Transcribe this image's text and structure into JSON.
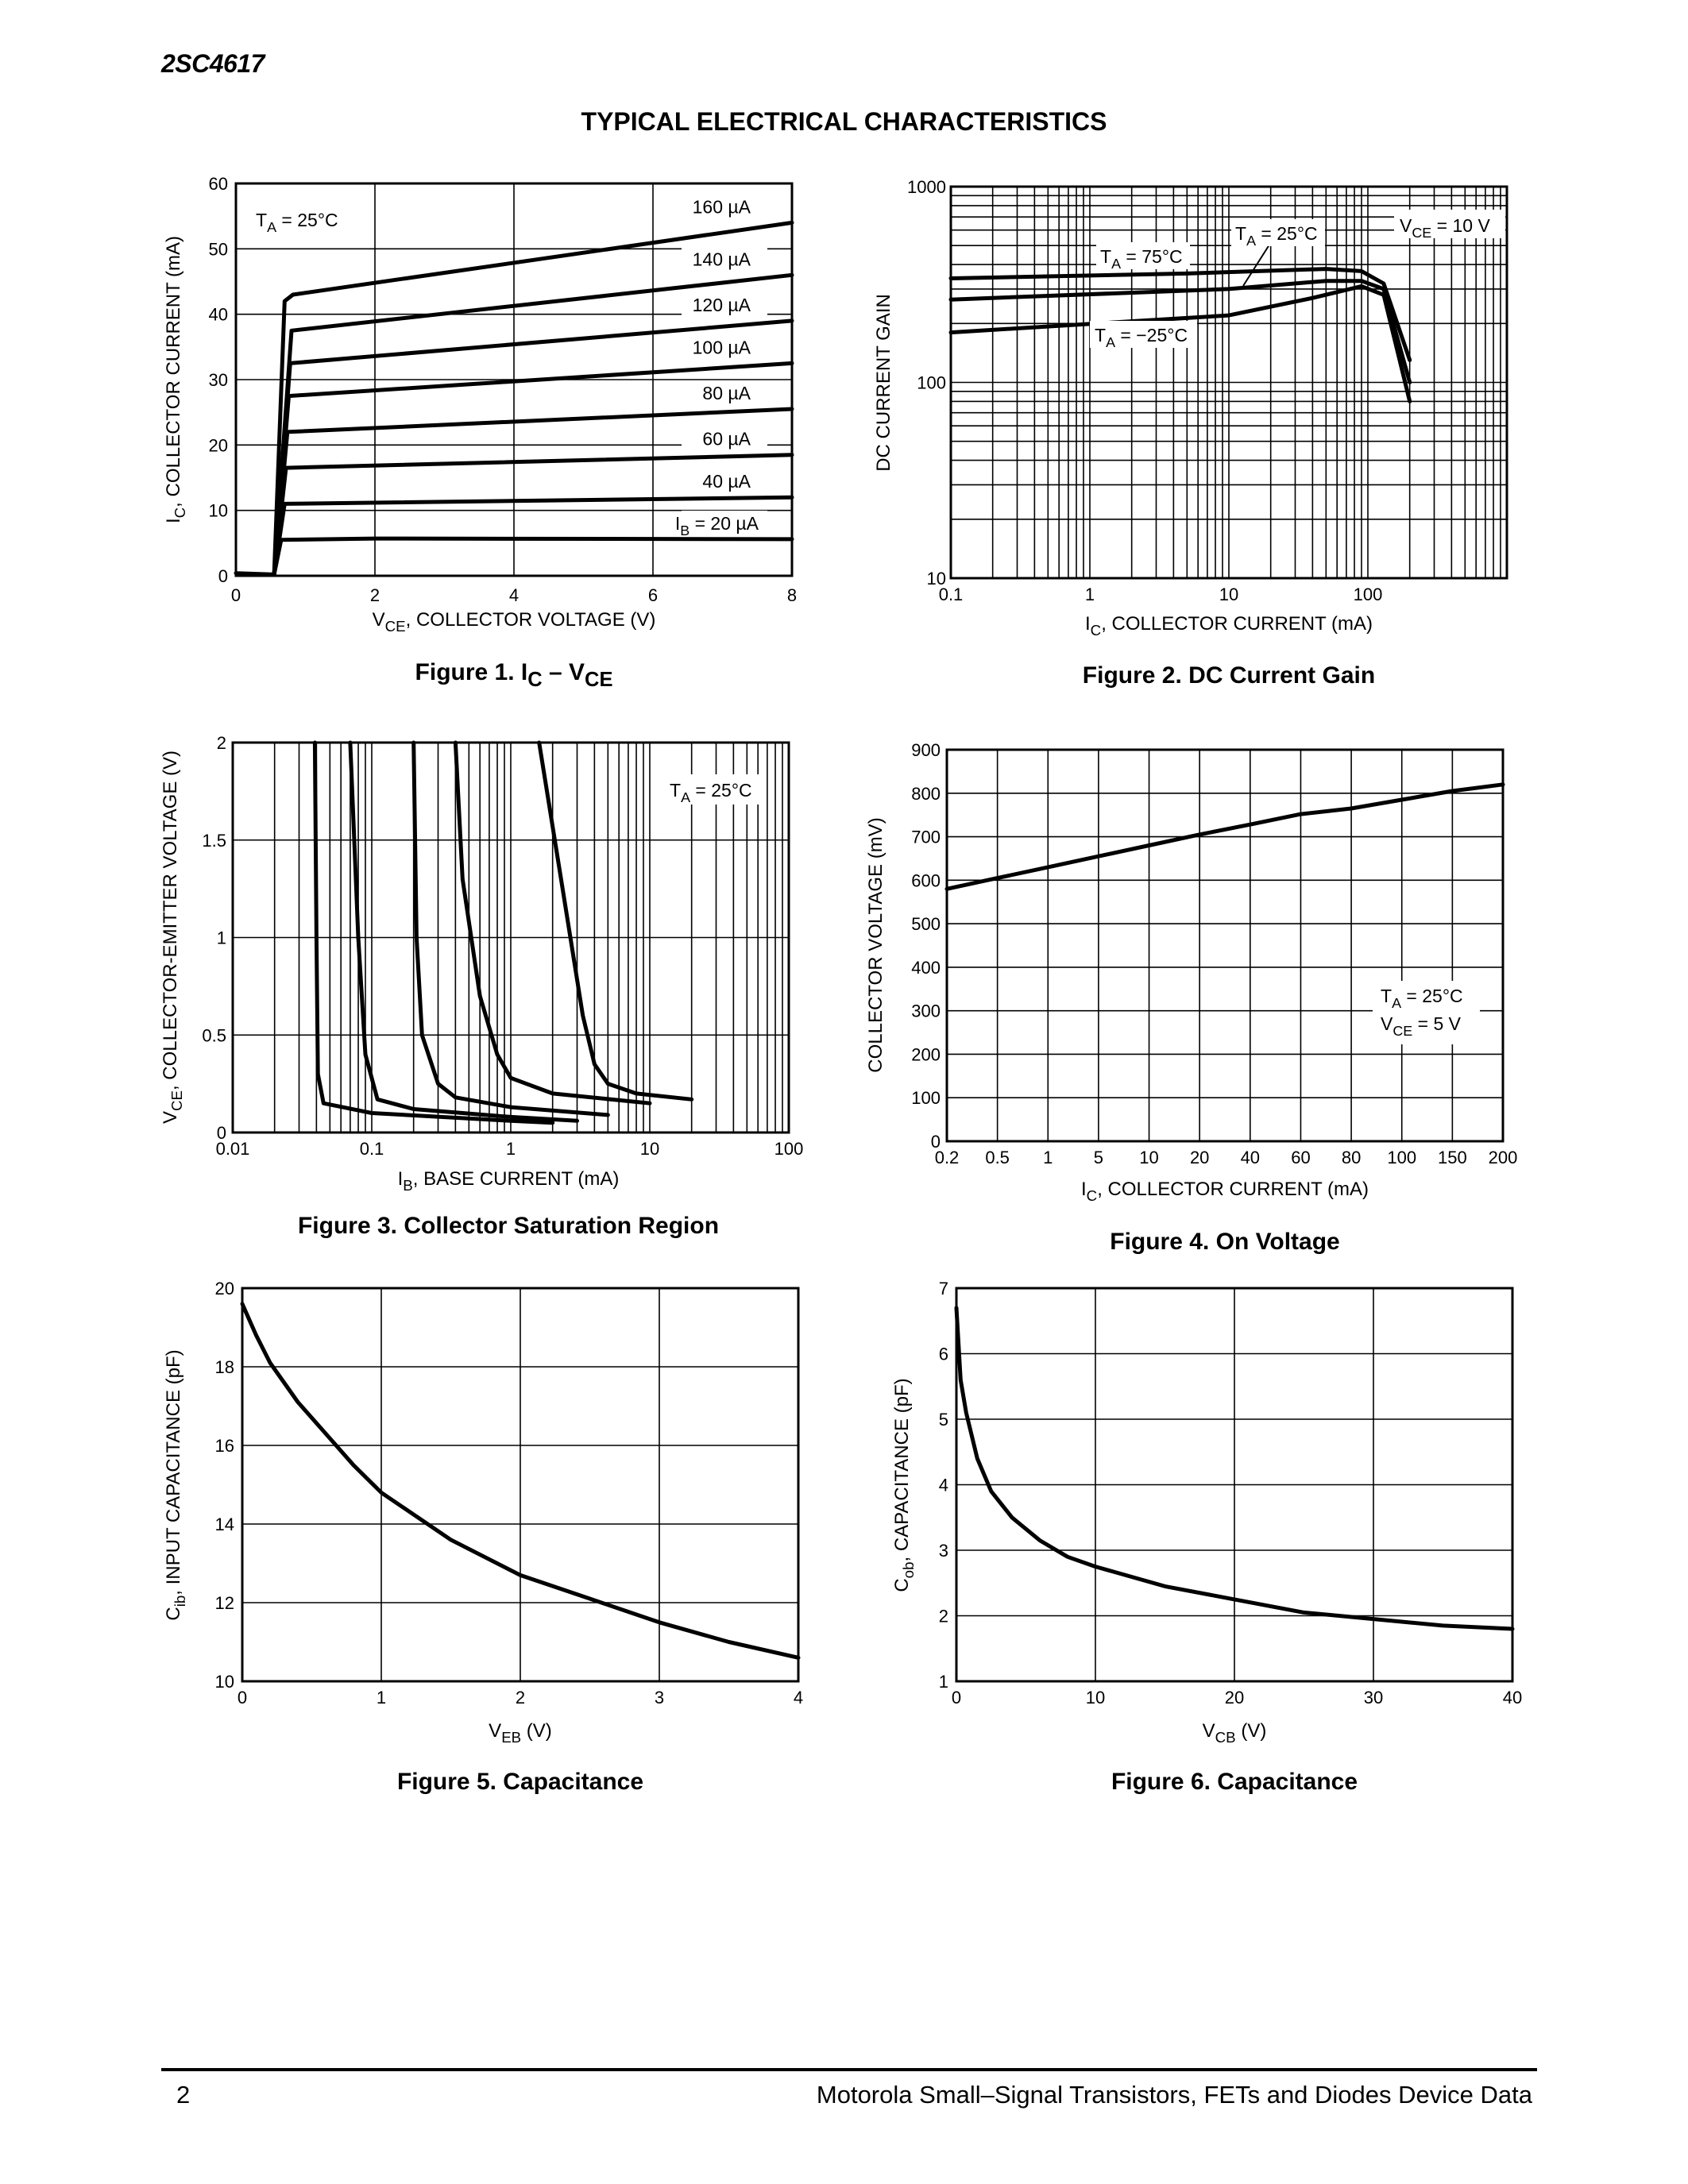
{
  "header": {
    "part_number": "2SC4617",
    "section_title": "TYPICAL ELECTRICAL CHARACTERISTICS"
  },
  "footer": {
    "page_number": "2",
    "text": "Motorola Small–Signal Transistors, FETs and Diodes Device Data"
  },
  "chart_data": [
    {
      "id": "fig1",
      "type": "line",
      "caption": {
        "prefix": "Figure 1. I",
        "sub1": "C",
        "mid": " – V",
        "sub2": "CE"
      },
      "xlabel": {
        "main": "V",
        "sub": "CE",
        "rest": ", COLLECTOR VOLTAGE (V)"
      },
      "ylabel": {
        "main": "I",
        "sub": "C",
        "rest": ", COLLECTOR CURRENT (mA)"
      },
      "xlim": [
        0,
        8
      ],
      "ylim": [
        0,
        60
      ],
      "xticks": [
        "0",
        "2",
        "4",
        "6",
        "8"
      ],
      "yticks": [
        "0",
        "10",
        "20",
        "30",
        "40",
        "50",
        "60"
      ],
      "annotation": {
        "main": "T",
        "sub": "A",
        "rest": " = 25°C"
      },
      "series": [
        {
          "name": "I_B = 20 µA",
          "label": "= 20 µA",
          "label_prefix": "I",
          "label_sub": "B",
          "points": [
            [
              0,
              0.4
            ],
            [
              0.55,
              0.2
            ],
            [
              0.65,
              5.5
            ],
            [
              2,
              5.7
            ],
            [
              8,
              5.6
            ]
          ]
        },
        {
          "name": "40 µA",
          "label": "40 µA",
          "points": [
            [
              0.55,
              0.2
            ],
            [
              0.7,
              11
            ],
            [
              8,
              12
            ]
          ]
        },
        {
          "name": "60 µA",
          "label": "60 µA",
          "points": [
            [
              0.55,
              0.2
            ],
            [
              0.72,
              16.5
            ],
            [
              8,
              18.5
            ]
          ]
        },
        {
          "name": "80 µA",
          "label": "80 µA",
          "points": [
            [
              0.55,
              0.2
            ],
            [
              0.74,
              22
            ],
            [
              8,
              25.5
            ]
          ]
        },
        {
          "name": "100 µA",
          "label": "100 µA",
          "points": [
            [
              0.55,
              0.2
            ],
            [
              0.76,
              27.5
            ],
            [
              8,
              32.5
            ]
          ]
        },
        {
          "name": "120 µA",
          "label": "120 µA",
          "points": [
            [
              0.55,
              0.2
            ],
            [
              0.78,
              32.5
            ],
            [
              8,
              39
            ]
          ]
        },
        {
          "name": "140 µA",
          "label": "140 µA",
          "points": [
            [
              0.55,
              0.2
            ],
            [
              0.8,
              37.5
            ],
            [
              8,
              46
            ]
          ]
        },
        {
          "name": "160 µA",
          "label": "160 µA",
          "points": [
            [
              0.55,
              0.2
            ],
            [
              0.7,
              42
            ],
            [
              0.82,
              43
            ],
            [
              8,
              54
            ]
          ]
        }
      ]
    },
    {
      "id": "fig2",
      "type": "line",
      "scale": "log-log",
      "caption": "Figure 2. DC Current Gain",
      "xlabel": {
        "main": "I",
        "sub": "C",
        "rest": ", COLLECTOR CURRENT (mA)"
      },
      "ylabel": "DC CURRENT GAIN",
      "xlim": [
        0.1,
        1000
      ],
      "ylim": [
        10,
        1000
      ],
      "xticks": [
        "0.1",
        "1",
        "10",
        "100"
      ],
      "yticks": [
        "10",
        "100",
        "1000"
      ],
      "annotations": [
        {
          "main": "V",
          "sub": "CE",
          "rest": " = 10 V"
        },
        {
          "main": "T",
          "sub": "A",
          "rest": " = 25°C"
        },
        {
          "main": "T",
          "sub": "A",
          "rest": " = 75°C"
        },
        {
          "main": "T",
          "sub": "A",
          "rest": " = −25°C"
        }
      ],
      "series": [
        {
          "name": "T_A = 75°C",
          "points": [
            [
              0.1,
              340
            ],
            [
              5,
              360
            ],
            [
              50,
              380
            ],
            [
              90,
              370
            ],
            [
              130,
              320
            ],
            [
              200,
              130
            ]
          ]
        },
        {
          "name": "T_A = 25°C",
          "points": [
            [
              0.1,
              265
            ],
            [
              10,
              300
            ],
            [
              50,
              330
            ],
            [
              90,
              330
            ],
            [
              130,
              300
            ],
            [
              200,
              100
            ]
          ]
        },
        {
          "name": "T_A = −25°C",
          "points": [
            [
              0.1,
              180
            ],
            [
              10,
              220
            ],
            [
              40,
              270
            ],
            [
              90,
              310
            ],
            [
              130,
              280
            ],
            [
              200,
              80
            ]
          ]
        }
      ]
    },
    {
      "id": "fig3",
      "type": "line",
      "scale": "log-x",
      "caption": "Figure 3. Collector Saturation Region",
      "xlabel": {
        "main": "I",
        "sub": "B",
        "rest": ", BASE CURRENT (mA)"
      },
      "ylabel": {
        "main": "V",
        "sub": "CE",
        "rest": ", COLLECTOR-EMITTER VOLTAGE (V)"
      },
      "xlim": [
        0.01,
        100
      ],
      "ylim": [
        0,
        2
      ],
      "xticks": [
        "0.01",
        "0.1",
        "1",
        "10",
        "100"
      ],
      "yticks": [
        "0",
        "0.5",
        "1",
        "1.5",
        "2"
      ],
      "annotation": {
        "main": "T",
        "sub": "A",
        "rest": " = 25°C"
      },
      "series": [
        {
          "name": "curve 1",
          "points": [
            [
              0.039,
              2
            ],
            [
              0.04,
              1
            ],
            [
              0.041,
              0.3
            ],
            [
              0.045,
              0.15
            ],
            [
              0.1,
              0.1
            ],
            [
              1,
              0.06
            ],
            [
              2,
              0.05
            ]
          ]
        },
        {
          "name": "curve 2",
          "points": [
            [
              0.07,
              2
            ],
            [
              0.08,
              1
            ],
            [
              0.09,
              0.4
            ],
            [
              0.11,
              0.17
            ],
            [
              0.2,
              0.12
            ],
            [
              1,
              0.08
            ],
            [
              3,
              0.06
            ]
          ]
        },
        {
          "name": "curve 3",
          "points": [
            [
              0.2,
              2
            ],
            [
              0.21,
              1
            ],
            [
              0.23,
              0.5
            ],
            [
              0.3,
              0.25
            ],
            [
              0.4,
              0.18
            ],
            [
              1,
              0.13
            ],
            [
              5,
              0.09
            ]
          ]
        },
        {
          "name": "curve 4",
          "points": [
            [
              0.4,
              2
            ],
            [
              0.45,
              1.3
            ],
            [
              0.6,
              0.7
            ],
            [
              0.8,
              0.4
            ],
            [
              1,
              0.28
            ],
            [
              2,
              0.2
            ],
            [
              10,
              0.15
            ]
          ]
        },
        {
          "name": "curve 5",
          "points": [
            [
              1.6,
              2
            ],
            [
              2.3,
              1.3
            ],
            [
              3.3,
              0.6
            ],
            [
              4,
              0.35
            ],
            [
              5,
              0.25
            ],
            [
              8,
              0.2
            ],
            [
              20,
              0.17
            ]
          ]
        }
      ]
    },
    {
      "id": "fig4",
      "type": "line",
      "caption": "Figure 4. On Voltage",
      "xlabel": {
        "main": "I",
        "sub": "C",
        "rest": ", COLLECTOR CURRENT (mA)"
      },
      "ylabel": "COLLECTOR VOLTAGE (mV)",
      "ylim": [
        0,
        900
      ],
      "xticks": [
        "0.2",
        "0.5",
        "1",
        "5",
        "10",
        "20",
        "40",
        "60",
        "80",
        "100",
        "150",
        "200"
      ],
      "yticks": [
        "0",
        "100",
        "200",
        "300",
        "400",
        "500",
        "600",
        "700",
        "800",
        "900"
      ],
      "annotations": [
        {
          "main": "T",
          "sub": "A",
          "rest": " = 25°C"
        },
        {
          "main": "V",
          "sub": "CE",
          "rest": " = 5 V"
        }
      ],
      "series": [
        {
          "name": "V_BE(on)",
          "values": [
            580,
            605,
            630,
            655,
            680,
            705,
            728,
            752,
            765,
            785,
            805,
            820
          ]
        }
      ]
    },
    {
      "id": "fig5",
      "type": "line",
      "caption": "Figure 5. Capacitance",
      "xlabel": {
        "main": "V",
        "sub": "EB",
        "rest": " (V)"
      },
      "ylabel": {
        "main": "C",
        "sub": "ib",
        "rest": ", INPUT CAPACITANCE (pF)"
      },
      "xlim": [
        0,
        4
      ],
      "ylim": [
        10,
        20
      ],
      "xticks": [
        "0",
        "1",
        "2",
        "3",
        "4"
      ],
      "yticks": [
        "10",
        "12",
        "14",
        "16",
        "18",
        "20"
      ],
      "series": [
        {
          "name": "C_ib",
          "points": [
            [
              0,
              19.6
            ],
            [
              0.1,
              18.8
            ],
            [
              0.2,
              18.1
            ],
            [
              0.4,
              17.1
            ],
            [
              0.6,
              16.3
            ],
            [
              0.8,
              15.5
            ],
            [
              1,
              14.8
            ],
            [
              1.5,
              13.6
            ],
            [
              2,
              12.7
            ],
            [
              2.5,
              12.1
            ],
            [
              3,
              11.5
            ],
            [
              3.5,
              11
            ],
            [
              4,
              10.6
            ]
          ]
        }
      ]
    },
    {
      "id": "fig6",
      "type": "line",
      "caption": "Figure 6. Capacitance",
      "xlabel": {
        "main": "V",
        "sub": "CB",
        "rest": " (V)"
      },
      "ylabel": {
        "main": "C",
        "sub": "ob",
        "rest": ", CAPACITANCE (pF)"
      },
      "xlim": [
        0,
        40
      ],
      "ylim": [
        1,
        7
      ],
      "xticks": [
        "0",
        "10",
        "20",
        "30",
        "40"
      ],
      "yticks": [
        "1",
        "2",
        "3",
        "4",
        "5",
        "6",
        "7"
      ],
      "series": [
        {
          "name": "C_ob",
          "points": [
            [
              0,
              6.7
            ],
            [
              0.3,
              5.6
            ],
            [
              0.7,
              5.1
            ],
            [
              1.5,
              4.4
            ],
            [
              2.5,
              3.9
            ],
            [
              4,
              3.5
            ],
            [
              6,
              3.15
            ],
            [
              8,
              2.9
            ],
            [
              10,
              2.75
            ],
            [
              15,
              2.45
            ],
            [
              20,
              2.25
            ],
            [
              25,
              2.05
            ],
            [
              30,
              1.95
            ],
            [
              35,
              1.85
            ],
            [
              40,
              1.8
            ]
          ]
        }
      ]
    }
  ]
}
